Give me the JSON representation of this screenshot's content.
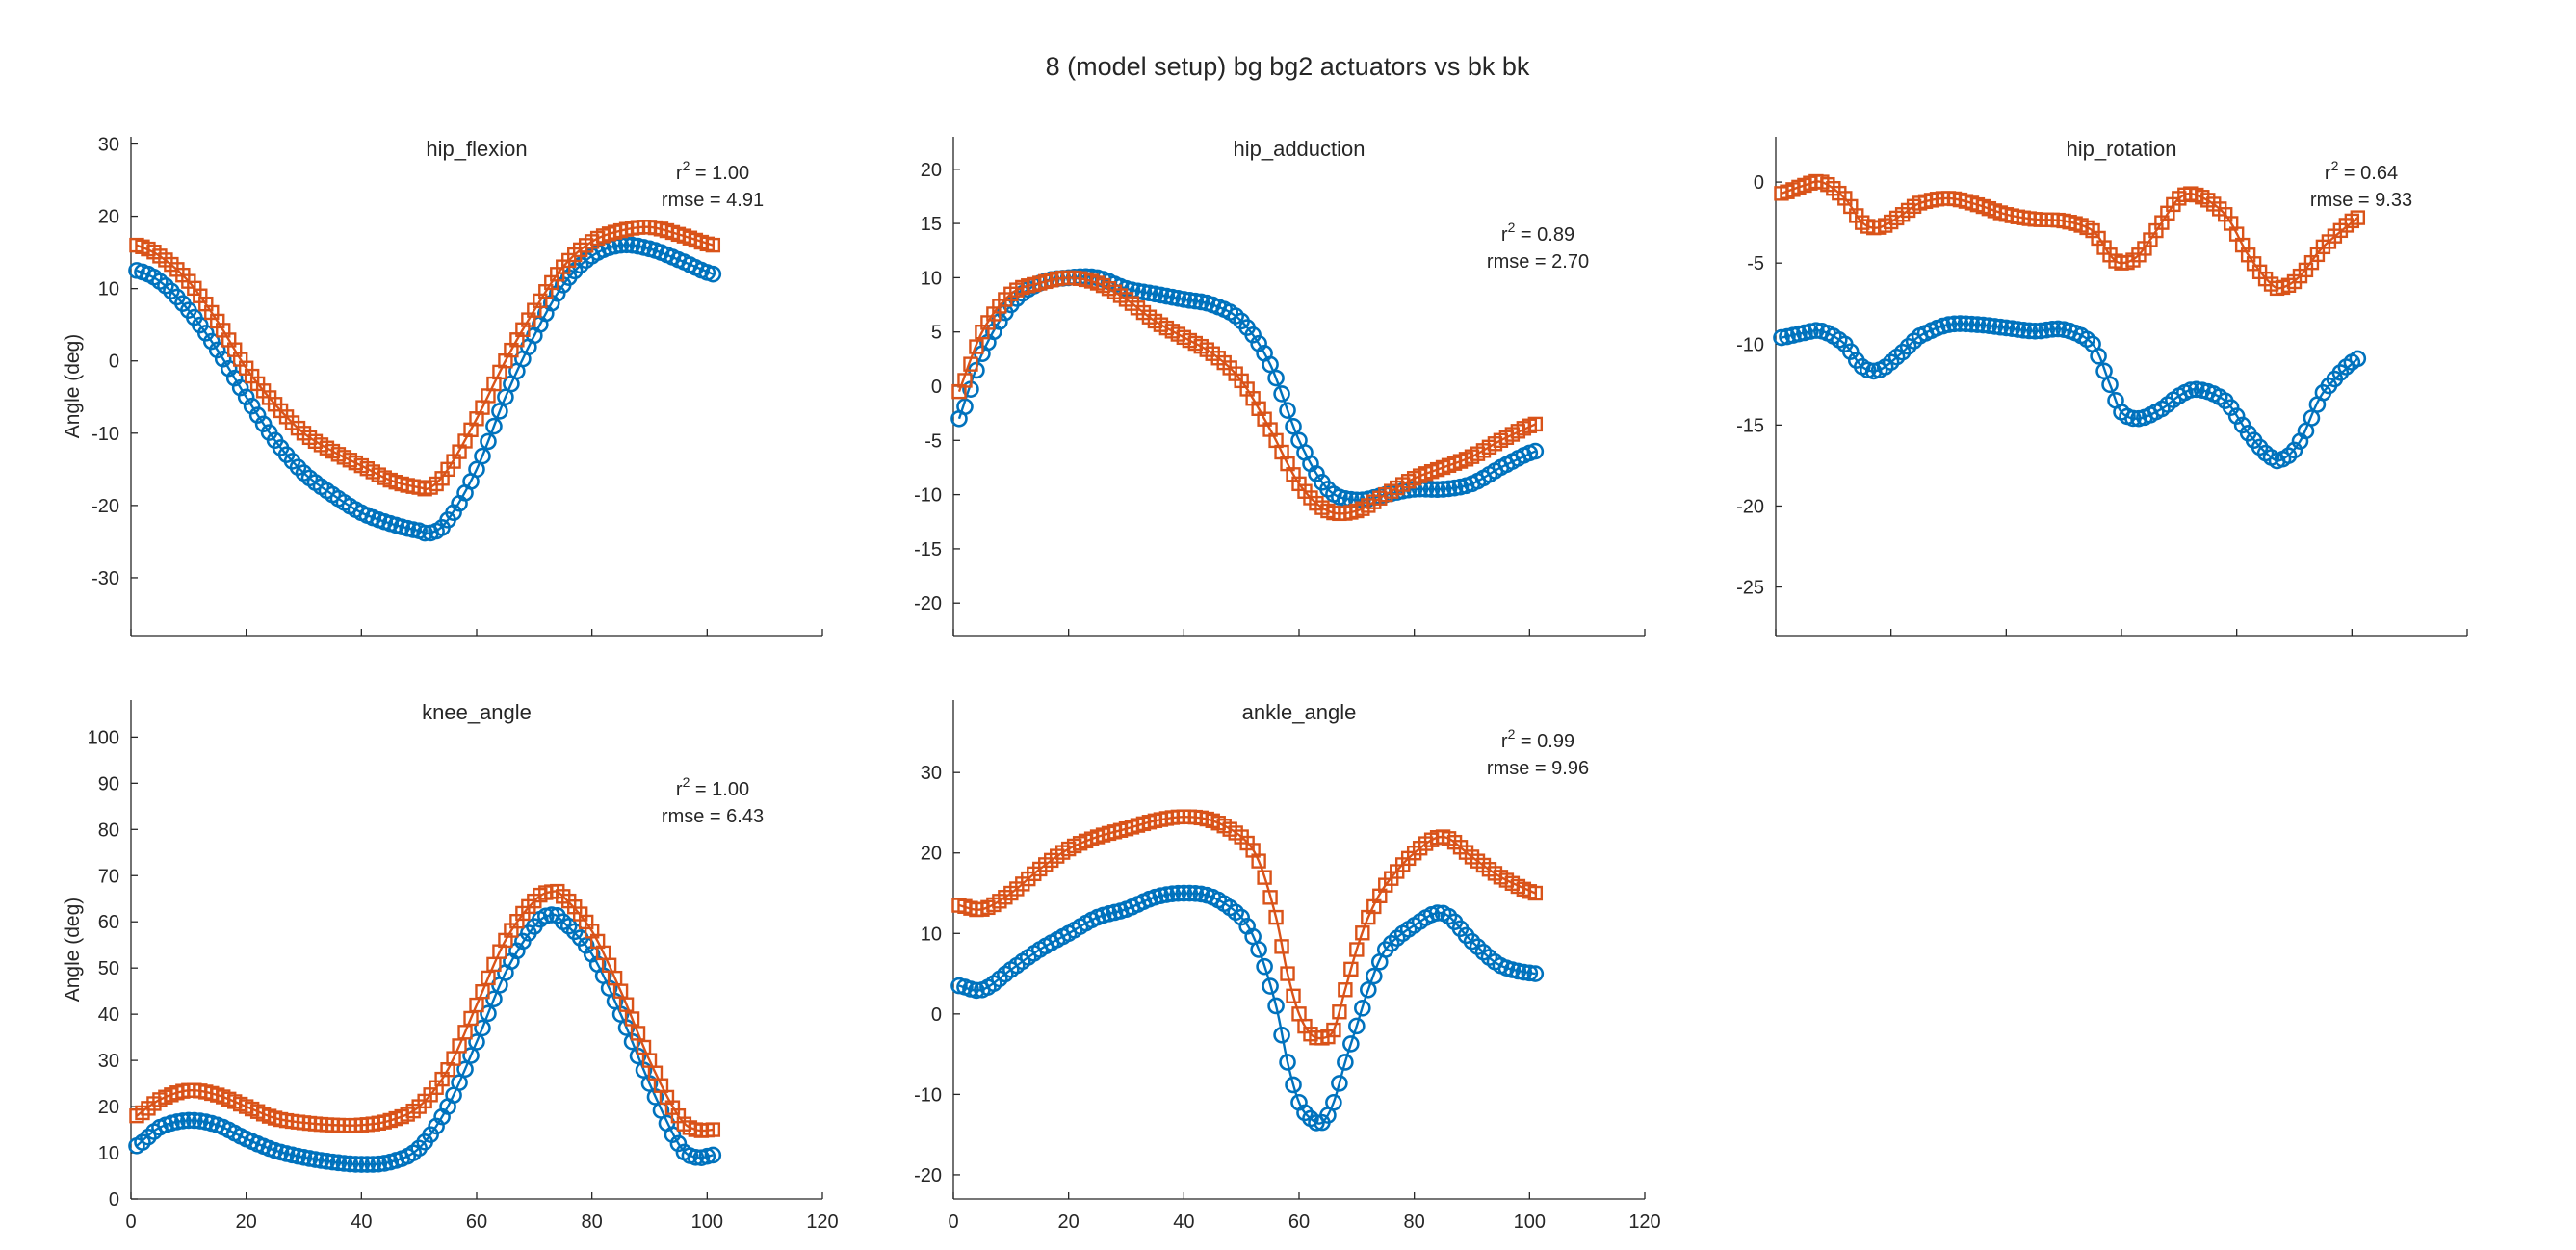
{
  "figure": {
    "title": "8 (model setup) bg bg2 actuators vs bk bk"
  },
  "colors": {
    "series_blue": "#0072BD",
    "series_orange": "#D95319"
  },
  "chart_data": [
    {
      "type": "line",
      "title": "hip_flexion",
      "ylabel": "Angle (deg)",
      "xlabel": "",
      "xlim": [
        0,
        120
      ],
      "ylim": [
        -38,
        31
      ],
      "yticks": [
        -30,
        -20,
        -10,
        0,
        10,
        20,
        30
      ],
      "xticks": [
        0,
        20,
        40,
        60,
        80,
        100,
        120
      ],
      "show_xtick_labels": false,
      "annotation": {
        "r2_prefix": "r",
        "r2_exp": "2",
        "r2_value": " = 1.00",
        "rmse": "rmse = 4.91"
      },
      "series": [
        {
          "marker": "circle",
          "color": "#0072BD",
          "x": [
            1,
            5,
            10,
            15,
            20,
            25,
            30,
            35,
            40,
            45,
            50,
            52,
            55,
            60,
            65,
            70,
            75,
            80,
            85,
            90,
            95,
            101
          ],
          "y": [
            12.5,
            11,
            7,
            1.5,
            -5,
            -11,
            -15.5,
            -18.5,
            -21,
            -22.5,
            -23.5,
            -23.8,
            -22,
            -15,
            -5,
            3.5,
            10.5,
            14.5,
            16,
            15.5,
            14,
            12
          ]
        },
        {
          "marker": "square",
          "color": "#D95319",
          "x": [
            1,
            5,
            10,
            15,
            20,
            25,
            30,
            35,
            40,
            45,
            50,
            52,
            55,
            60,
            65,
            70,
            75,
            80,
            85,
            90,
            95,
            101
          ],
          "y": [
            16,
            14.5,
            11,
            5.5,
            -1,
            -6,
            -10,
            -12.5,
            -14.5,
            -16.5,
            -17.5,
            -17.5,
            -15,
            -8,
            0,
            7,
            13,
            16.5,
            18,
            18.5,
            17.5,
            16
          ]
        }
      ]
    },
    {
      "type": "line",
      "title": "hip_adduction",
      "ylabel": "",
      "xlabel": "",
      "xlim": [
        0,
        120
      ],
      "ylim": [
        -23,
        23
      ],
      "yticks": [
        -20,
        -15,
        -10,
        -5,
        0,
        5,
        10,
        15,
        20
      ],
      "xticks": [
        0,
        20,
        40,
        60,
        80,
        100,
        120
      ],
      "show_xtick_labels": false,
      "annotation": {
        "r2_prefix": "r",
        "r2_exp": "2",
        "r2_value": " = 0.89",
        "rmse": "rmse = 2.70"
      },
      "series": [
        {
          "marker": "circle",
          "color": "#0072BD",
          "x": [
            1,
            5,
            10,
            15,
            20,
            25,
            30,
            35,
            40,
            45,
            50,
            55,
            60,
            65,
            70,
            75,
            80,
            85,
            90,
            95,
            101
          ],
          "y": [
            -3,
            3,
            7.5,
            9.5,
            10,
            10,
            9,
            8.5,
            8,
            7.5,
            6,
            2,
            -5,
            -9.5,
            -10.5,
            -10,
            -9.5,
            -9.5,
            -9,
            -7.5,
            -6
          ]
        },
        {
          "marker": "square",
          "color": "#D95319",
          "x": [
            1,
            5,
            10,
            15,
            20,
            25,
            30,
            35,
            40,
            45,
            50,
            55,
            60,
            65,
            70,
            75,
            80,
            85,
            90,
            95,
            101
          ],
          "y": [
            -0.5,
            5,
            8.5,
            9.5,
            10,
            9.5,
            8,
            6,
            4.5,
            3,
            0.5,
            -4,
            -9,
            -11.5,
            -11.5,
            -10,
            -8.5,
            -7.5,
            -6.5,
            -5,
            -3.5
          ]
        }
      ]
    },
    {
      "type": "line",
      "title": "hip_rotation",
      "ylabel": "",
      "xlabel": "",
      "xlim": [
        0,
        120
      ],
      "ylim": [
        -28,
        2.8
      ],
      "yticks": [
        -25,
        -20,
        -15,
        -10,
        -5,
        0
      ],
      "xticks": [
        0,
        20,
        40,
        60,
        80,
        100,
        120
      ],
      "show_xtick_labels": false,
      "annotation": {
        "r2_prefix": "r",
        "r2_exp": "2",
        "r2_value": " = 0.64",
        "rmse": "rmse = 9.33"
      },
      "series": [
        {
          "marker": "circle",
          "color": "#0072BD",
          "x": [
            1,
            5,
            8,
            12,
            15,
            18,
            22,
            25,
            30,
            35,
            40,
            45,
            50,
            55,
            58,
            60,
            63,
            67,
            70,
            73,
            78,
            82,
            86,
            88,
            91,
            95,
            101
          ],
          "y": [
            -9.6,
            -9.3,
            -9.2,
            -10,
            -11.4,
            -11.6,
            -10.5,
            -9.5,
            -8.8,
            -8.8,
            -9,
            -9.2,
            -9.1,
            -10,
            -12.5,
            -14.2,
            -14.6,
            -14,
            -13.2,
            -12.8,
            -13.5,
            -15.5,
            -17,
            -17.1,
            -16,
            -13,
            -10.9
          ]
        },
        {
          "marker": "square",
          "color": "#D95319",
          "x": [
            1,
            5,
            8,
            12,
            15,
            18,
            22,
            25,
            30,
            35,
            40,
            45,
            50,
            55,
            58,
            60,
            63,
            67,
            70,
            73,
            78,
            82,
            86,
            88,
            91,
            95,
            101
          ],
          "y": [
            -0.7,
            -0.2,
            0,
            -1,
            -2.5,
            -2.8,
            -2,
            -1.3,
            -1,
            -1.4,
            -2,
            -2.3,
            -2.4,
            -3,
            -4.5,
            -5,
            -4.5,
            -2.5,
            -1,
            -0.8,
            -2,
            -4.5,
            -6.3,
            -6.5,
            -5.8,
            -4,
            -2.2
          ]
        }
      ]
    },
    {
      "type": "line",
      "title": "knee_angle",
      "ylabel": "Angle (deg)",
      "xlabel": "",
      "xlim": [
        0,
        120
      ],
      "ylim": [
        0,
        108
      ],
      "yticks": [
        0,
        10,
        20,
        30,
        40,
        50,
        60,
        70,
        80,
        90,
        100
      ],
      "xticks": [
        0,
        20,
        40,
        60,
        80,
        100,
        120
      ],
      "show_xtick_labels": true,
      "annotation": {
        "r2_prefix": "r",
        "r2_exp": "2",
        "r2_value": " = 1.00",
        "rmse": "rmse = 6.43"
      },
      "series": [
        {
          "marker": "circle",
          "color": "#0072BD",
          "x": [
            1,
            5,
            10,
            15,
            20,
            25,
            30,
            35,
            40,
            45,
            50,
            55,
            60,
            65,
            70,
            73,
            75,
            80,
            85,
            90,
            95,
            98,
            101
          ],
          "y": [
            11.5,
            15.5,
            17,
            16,
            13,
            10.5,
            9,
            8,
            7.5,
            8,
            11,
            20,
            34,
            49,
            59,
            61.5,
            60,
            53,
            40,
            25,
            12,
            9,
            9.5
          ]
        },
        {
          "marker": "square",
          "color": "#D95319",
          "x": [
            1,
            5,
            10,
            15,
            20,
            25,
            30,
            35,
            40,
            45,
            50,
            55,
            60,
            65,
            70,
            73,
            75,
            80,
            85,
            90,
            95,
            98,
            101
          ],
          "y": [
            18,
            21.5,
            23.5,
            22.5,
            20,
            17.5,
            16.5,
            16,
            16,
            17,
            20,
            28,
            42,
            56,
            64.5,
            66.5,
            65.5,
            58,
            45,
            30,
            18,
            15,
            15
          ]
        }
      ]
    },
    {
      "type": "line",
      "title": "ankle_angle",
      "ylabel": "",
      "xlabel": "",
      "xlim": [
        0,
        120
      ],
      "ylim": [
        -23,
        39
      ],
      "yticks": [
        -20,
        -10,
        0,
        10,
        20,
        30
      ],
      "xticks": [
        0,
        20,
        40,
        60,
        80,
        100,
        120
      ],
      "show_xtick_labels": true,
      "annotation": {
        "r2_prefix": "r",
        "r2_exp": "2",
        "r2_value": " = 0.99",
        "rmse": "rmse = 9.96"
      },
      "series": [
        {
          "marker": "circle",
          "color": "#0072BD",
          "x": [
            1,
            5,
            10,
            15,
            20,
            25,
            30,
            35,
            40,
            45,
            50,
            53,
            56,
            58,
            60,
            62,
            64,
            66,
            68,
            70,
            72,
            75,
            80,
            85,
            90,
            95,
            101
          ],
          "y": [
            3.5,
            3,
            5.5,
            8,
            10,
            12,
            13,
            14.5,
            15,
            14.5,
            12,
            8,
            1,
            -6,
            -11,
            -13,
            -13.5,
            -11,
            -6,
            -1.5,
            3,
            8,
            11,
            12.5,
            9,
            6,
            5
          ]
        },
        {
          "marker": "square",
          "color": "#D95319",
          "x": [
            1,
            5,
            10,
            15,
            20,
            25,
            30,
            35,
            40,
            45,
            50,
            53,
            56,
            58,
            60,
            62,
            64,
            66,
            68,
            70,
            72,
            75,
            80,
            85,
            90,
            95,
            101
          ],
          "y": [
            13.5,
            13,
            15,
            18,
            20.5,
            22,
            23,
            24,
            24.5,
            24,
            22,
            19,
            12,
            5,
            0,
            -2.5,
            -3,
            -2,
            3,
            8,
            12,
            16,
            20,
            22,
            19.5,
            17,
            15
          ]
        }
      ]
    }
  ]
}
